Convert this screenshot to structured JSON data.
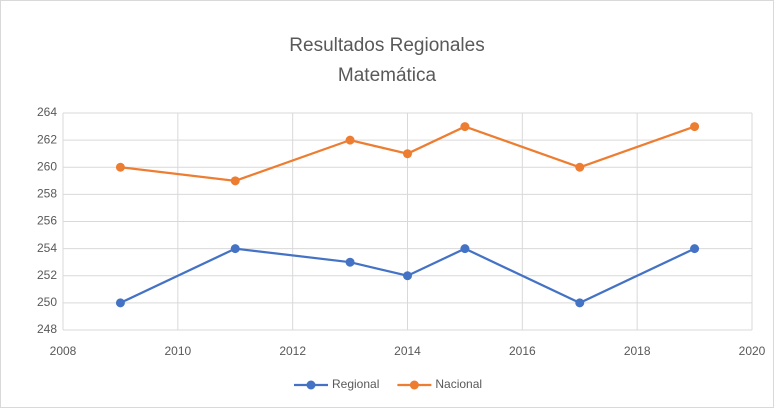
{
  "chart_data": {
    "type": "line",
    "title": "Resultados Regionales",
    "subtitle": "Matemática",
    "x": [
      2009,
      2011,
      2013,
      2014,
      2015,
      2017,
      2019
    ],
    "series": [
      {
        "name": "Regional",
        "color": "#4472c4",
        "values": [
          250,
          254,
          253,
          252,
          254,
          250,
          254
        ]
      },
      {
        "name": "Nacional",
        "color": "#ed7d31",
        "values": [
          260,
          259,
          262,
          261,
          263,
          260,
          263
        ]
      }
    ],
    "xlim": [
      2008,
      2020
    ],
    "xticks": [
      2008,
      2010,
      2012,
      2014,
      2016,
      2018,
      2020
    ],
    "ylim": [
      248,
      264
    ],
    "yticks": [
      248,
      250,
      252,
      254,
      256,
      258,
      260,
      262,
      264
    ],
    "grid": true,
    "legend": "bottom"
  }
}
